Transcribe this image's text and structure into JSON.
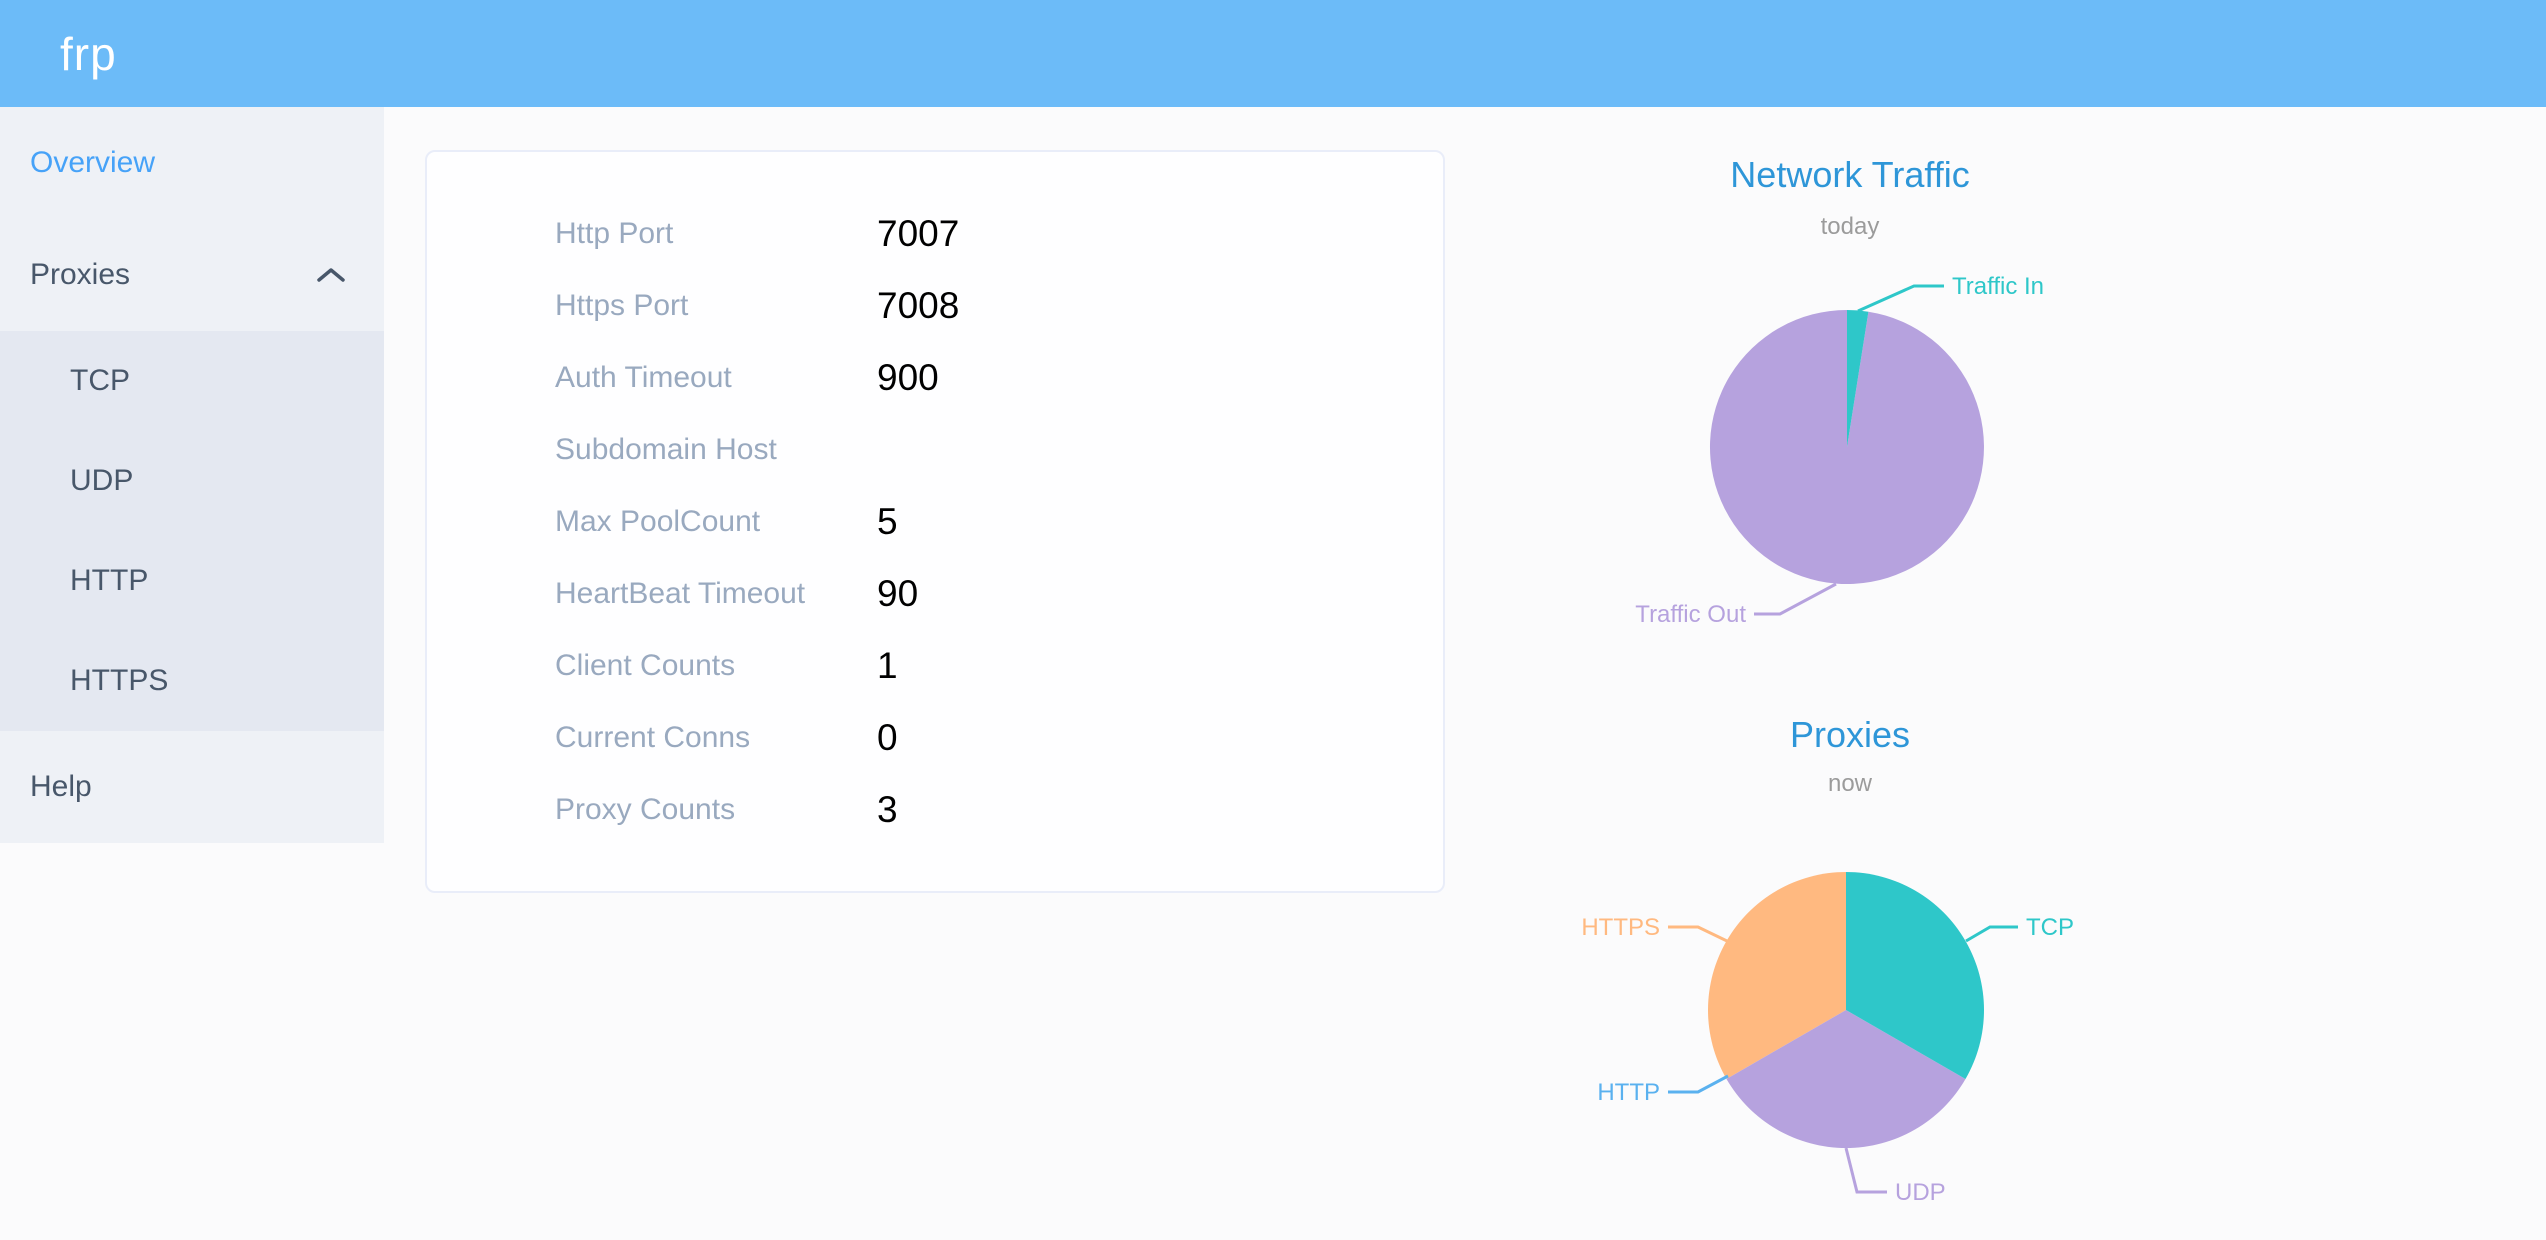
{
  "header": {
    "logo": "frp"
  },
  "sidebar": {
    "items": [
      {
        "label": "Overview",
        "active": true
      },
      {
        "label": "Proxies",
        "expanded": true,
        "children": [
          "TCP",
          "UDP",
          "HTTP",
          "HTTPS"
        ]
      },
      {
        "label": "Help"
      }
    ]
  },
  "overview_card": {
    "rows": [
      {
        "label": "Http Port",
        "value": "7007"
      },
      {
        "label": "Https Port",
        "value": "7008"
      },
      {
        "label": "Auth Timeout",
        "value": "900"
      },
      {
        "label": "Subdomain Host",
        "value": ""
      },
      {
        "label": "Max PoolCount",
        "value": "5"
      },
      {
        "label": "HeartBeat Timeout",
        "value": "90"
      },
      {
        "label": "Client Counts",
        "value": "1"
      },
      {
        "label": "Current Conns",
        "value": "0"
      },
      {
        "label": "Proxy Counts",
        "value": "3"
      }
    ]
  },
  "chart_data": [
    {
      "type": "pie",
      "title": "Network Traffic",
      "subtitle": "today",
      "values_unit": "percent-estimate",
      "labels_position": "outside",
      "legend_position": "none",
      "series": [
        {
          "name": "Traffic In",
          "value": 2.5,
          "color": "#2ec7c9"
        },
        {
          "name": "Traffic Out",
          "value": 97.5,
          "color": "#b6a2de"
        }
      ]
    },
    {
      "type": "pie",
      "title": "Proxies",
      "subtitle": "now",
      "values_unit": "count",
      "labels_position": "outside",
      "legend_position": "none",
      "series": [
        {
          "name": "TCP",
          "value": 1,
          "color": "#2ec7c9"
        },
        {
          "name": "UDP",
          "value": 1,
          "color": "#b6a2de"
        },
        {
          "name": "HTTP",
          "value": 0,
          "color": "#5ab1ef"
        },
        {
          "name": "HTTPS",
          "value": 1,
          "color": "#ffb980"
        }
      ]
    }
  ]
}
